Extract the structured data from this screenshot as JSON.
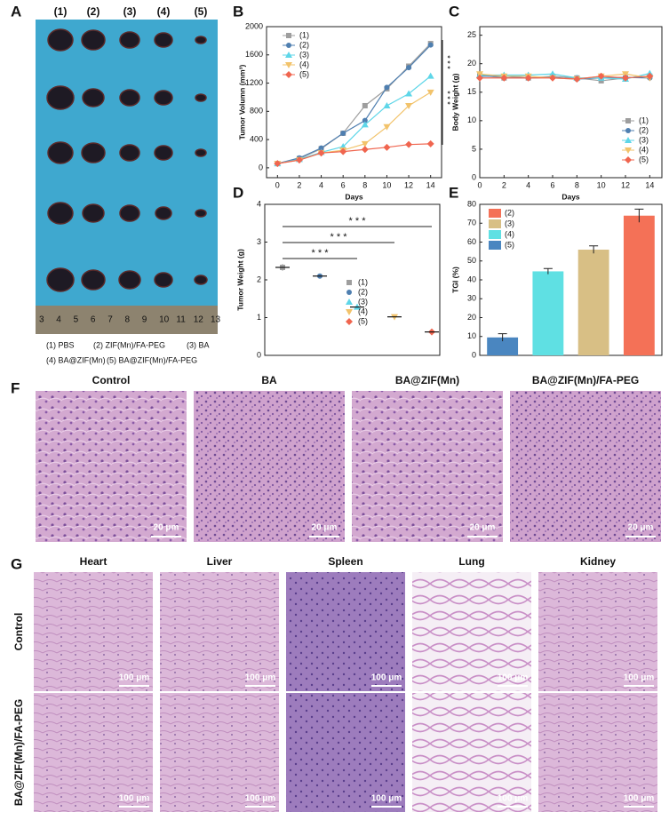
{
  "panel_labels": [
    "A",
    "B",
    "C",
    "D",
    "E",
    "F",
    "G"
  ],
  "panel_a": {
    "columns": [
      "(1)",
      "(2)",
      "(3)",
      "(4)",
      "(5)"
    ],
    "ruler": [
      3,
      4,
      5,
      6,
      7,
      8,
      9,
      10,
      11,
      12,
      13
    ],
    "legend": [
      "(1) PBS",
      "(2) ZIF(Mn)/FA-PEG",
      "(3) BA",
      "(4) BA@ZIF(Mn)",
      "(5) BA@ZIF(Mn)/FA-PEG"
    ]
  },
  "chart_data": [
    {
      "type": "line",
      "ylabel": "Tumor Volumn (mm³)",
      "xlabel": "Days",
      "x": [
        0,
        2,
        4,
        6,
        8,
        10,
        12,
        14
      ],
      "xlim": [
        -1,
        15
      ],
      "xticks": [
        0,
        2,
        4,
        6,
        8,
        10,
        12,
        14
      ],
      "ylim": [
        -140,
        2000
      ],
      "yticks": [
        0,
        400,
        800,
        1200,
        1600,
        2000
      ],
      "legend": "top-left",
      "annotations": [
        "* * *",
        "* * *"
      ],
      "series": [
        {
          "name": "(1)",
          "color": "#9e9e9e",
          "marker": "square",
          "values": [
            60,
            130,
            270,
            490,
            880,
            1120,
            1440,
            1760
          ]
        },
        {
          "name": "(2)",
          "color": "#4f7fb0",
          "marker": "circle",
          "values": [
            60,
            140,
            280,
            490,
            670,
            1140,
            1420,
            1740
          ]
        },
        {
          "name": "(3)",
          "color": "#5ed6e8",
          "marker": "triangle-up",
          "values": [
            60,
            120,
            220,
            300,
            610,
            880,
            1050,
            1300
          ]
        },
        {
          "name": "(4)",
          "color": "#f2c36b",
          "marker": "triangle-down",
          "values": [
            60,
            110,
            210,
            250,
            340,
            580,
            880,
            1070
          ]
        },
        {
          "name": "(5)",
          "color": "#f0654f",
          "marker": "diamond",
          "values": [
            60,
            110,
            210,
            230,
            260,
            290,
            330,
            340
          ]
        }
      ]
    },
    {
      "type": "line",
      "ylabel": "Body Weight (g)",
      "xlabel": "Days",
      "x": [
        0,
        2,
        4,
        6,
        8,
        10,
        12,
        14
      ],
      "xlim": [
        0,
        15
      ],
      "xticks": [
        0,
        2,
        4,
        6,
        8,
        10,
        12,
        14
      ],
      "ylim": [
        0,
        26.5
      ],
      "yticks": [
        0,
        5,
        10,
        15,
        20,
        25
      ],
      "legend": "bottom-right",
      "series": [
        {
          "name": "(1)",
          "color": "#9e9e9e",
          "marker": "square",
          "values": [
            18,
            17.5,
            17.5,
            17.8,
            17.5,
            17,
            17.5,
            17.8
          ]
        },
        {
          "name": "(2)",
          "color": "#4f7fb0",
          "marker": "circle",
          "values": [
            17.8,
            17.8,
            17.5,
            17.6,
            17.3,
            17.5,
            17.6,
            17.5
          ]
        },
        {
          "name": "(3)",
          "color": "#5ed6e8",
          "marker": "triangle-up",
          "values": [
            18,
            18,
            18,
            18.2,
            17.5,
            17.5,
            17.3,
            18.3
          ]
        },
        {
          "name": "(4)",
          "color": "#f2c36b",
          "marker": "triangle-down",
          "values": [
            18.2,
            17.8,
            17.8,
            17.5,
            17.3,
            17.8,
            18.2,
            17.5
          ]
        },
        {
          "name": "(5)",
          "color": "#f0654f",
          "marker": "diamond",
          "values": [
            17.5,
            17.5,
            17.5,
            17.5,
            17.3,
            17.8,
            17.5,
            17.8
          ]
        }
      ]
    },
    {
      "type": "scatter",
      "ylabel": "Tumor Weight (g)",
      "ylim": [
        0,
        4
      ],
      "yticks": [
        0,
        1,
        2,
        3,
        4
      ],
      "legend": "center",
      "annotations": [
        "* * *",
        "* * *",
        "* * *"
      ],
      "series": [
        {
          "name": "(1)",
          "color": "#9e9e9e",
          "marker": "square",
          "values": [
            2.33
          ],
          "errors": [
            0.08
          ]
        },
        {
          "name": "(2)",
          "color": "#4f7fb0",
          "marker": "circle",
          "values": [
            2.1
          ],
          "errors": [
            0.06
          ]
        },
        {
          "name": "(3)",
          "color": "#5ed6e8",
          "marker": "triangle-up",
          "values": [
            1.28
          ],
          "errors": [
            0.05
          ]
        },
        {
          "name": "(4)",
          "color": "#f2c36b",
          "marker": "triangle-down",
          "values": [
            1.02
          ],
          "errors": [
            0.04
          ]
        },
        {
          "name": "(5)",
          "color": "#f0654f",
          "marker": "diamond",
          "values": [
            0.62
          ],
          "errors": [
            0.08
          ]
        }
      ]
    },
    {
      "type": "bar",
      "ylabel": "TGI (%)",
      "ylim": [
        0,
        80
      ],
      "yticks": [
        0,
        10,
        20,
        30,
        40,
        50,
        60,
        70,
        80
      ],
      "legend": "top-left",
      "series": [
        {
          "name": "(5)",
          "color": "#4a86c0",
          "values": [
            9.5
          ],
          "errors": [
            2
          ]
        },
        {
          "name": "(4)",
          "color": "#5fe0e3",
          "values": [
            44.5
          ],
          "errors": [
            1.5
          ]
        },
        {
          "name": "(3)",
          "color": "#d8bf85",
          "values": [
            56
          ],
          "errors": [
            2
          ]
        },
        {
          "name": "(2)",
          "color": "#f47157",
          "values": [
            74
          ],
          "errors": [
            3.5
          ]
        }
      ]
    }
  ],
  "panel_f": {
    "columns": [
      "Control",
      "BA",
      "BA@ZIF(Mn)",
      "BA@ZIF(Mn)/FA-PEG"
    ],
    "scale_bar": "20 μm"
  },
  "panel_g": {
    "columns": [
      "Heart",
      "Liver",
      "Spleen",
      "Lung",
      "Kidney"
    ],
    "rows": [
      "Control",
      "BA@ZIF(Mn)/FA-PEG"
    ],
    "scale_bar": "100 μm"
  }
}
